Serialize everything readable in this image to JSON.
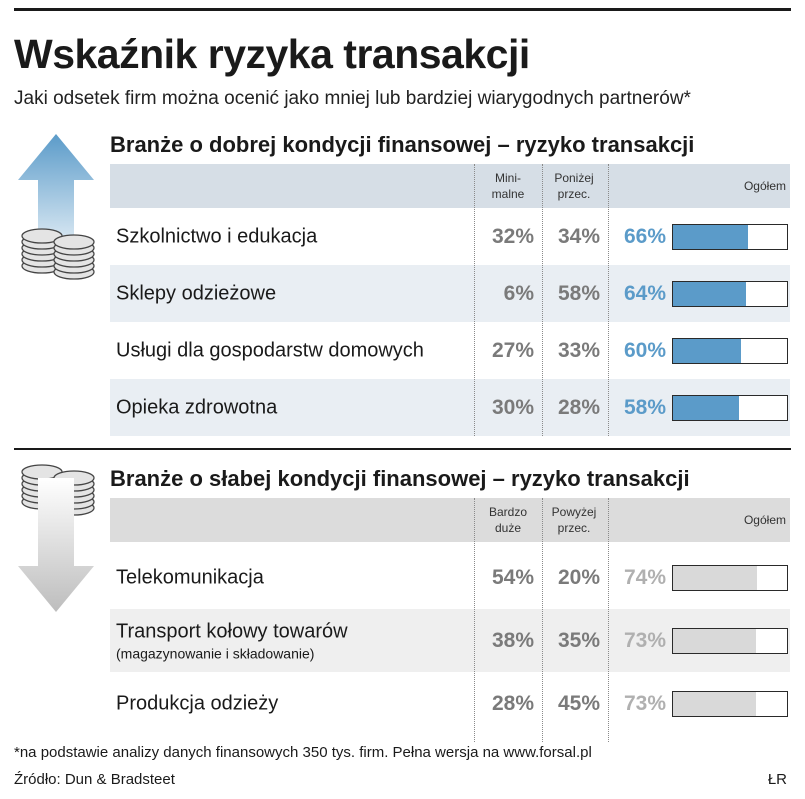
{
  "title": "Wskaźnik ryzyka transakcji",
  "subtitle": "Jaki odsetek firm można ocenić jako mniej lub bardziej wiarygodnych partnerów*",
  "chart_data": [
    {
      "type": "table",
      "title": "Branże o dobrej kondycji finansowej – ryzyko transakcji",
      "columns": [
        "Mini-malne",
        "Poniżej przec.",
        "Ogółem"
      ],
      "col_top": [
        "Mini-",
        "Poniżej",
        ""
      ],
      "col_bottom": [
        "malne",
        "przec.",
        "Ogółem"
      ],
      "rows": [
        {
          "label": "Szkolnictwo i edukacja",
          "note": "",
          "v1": "32%",
          "v2": "34%",
          "v3": "66%",
          "total": 66
        },
        {
          "label": "Sklepy odzieżowe",
          "note": "",
          "v1": "6%",
          "v2": "58%",
          "v3": "64%",
          "total": 64
        },
        {
          "label": "Usługi dla gospodarstw domowych",
          "note": "",
          "v1": "27%",
          "v2": "33%",
          "v3": "60%",
          "total": 60
        },
        {
          "label": "Opieka zdrowotna",
          "note": "",
          "v1": "30%",
          "v2": "28%",
          "v3": "58%",
          "total": 58
        }
      ],
      "accent_color": "#5b9bc9"
    },
    {
      "type": "table",
      "title": "Branże o słabej kondycji finansowej – ryzyko transakcji",
      "columns": [
        "Bardzo duże",
        "Powyżej przec.",
        "Ogółem"
      ],
      "col_top": [
        "Bardzo",
        "Powyżej",
        ""
      ],
      "col_bottom": [
        "duże",
        "przec.",
        "Ogółem"
      ],
      "rows": [
        {
          "label": "Telekomunikacja",
          "note": "",
          "v1": "54%",
          "v2": "20%",
          "v3": "74%",
          "total": 74
        },
        {
          "label": "Transport kołowy towarów",
          "note": "(magazynowanie i składowanie)",
          "v1": "38%",
          "v2": "35%",
          "v3": "73%",
          "total": 73
        },
        {
          "label": "Produkcja odzieży",
          "note": "",
          "v1": "28%",
          "v2": "45%",
          "v3": "73%",
          "total": 73
        }
      ],
      "accent_color": "#d9d9d9"
    }
  ],
  "footnote": "*na podstawie analizy danych finansowych 350 tys. firm. Pełna wersja na www.forsal.pl",
  "source": "Źródło: Dun & Bradsteet",
  "author": "ŁR",
  "icons": [
    "arrow-up-icon",
    "coins-icon",
    "arrow-down-icon"
  ]
}
